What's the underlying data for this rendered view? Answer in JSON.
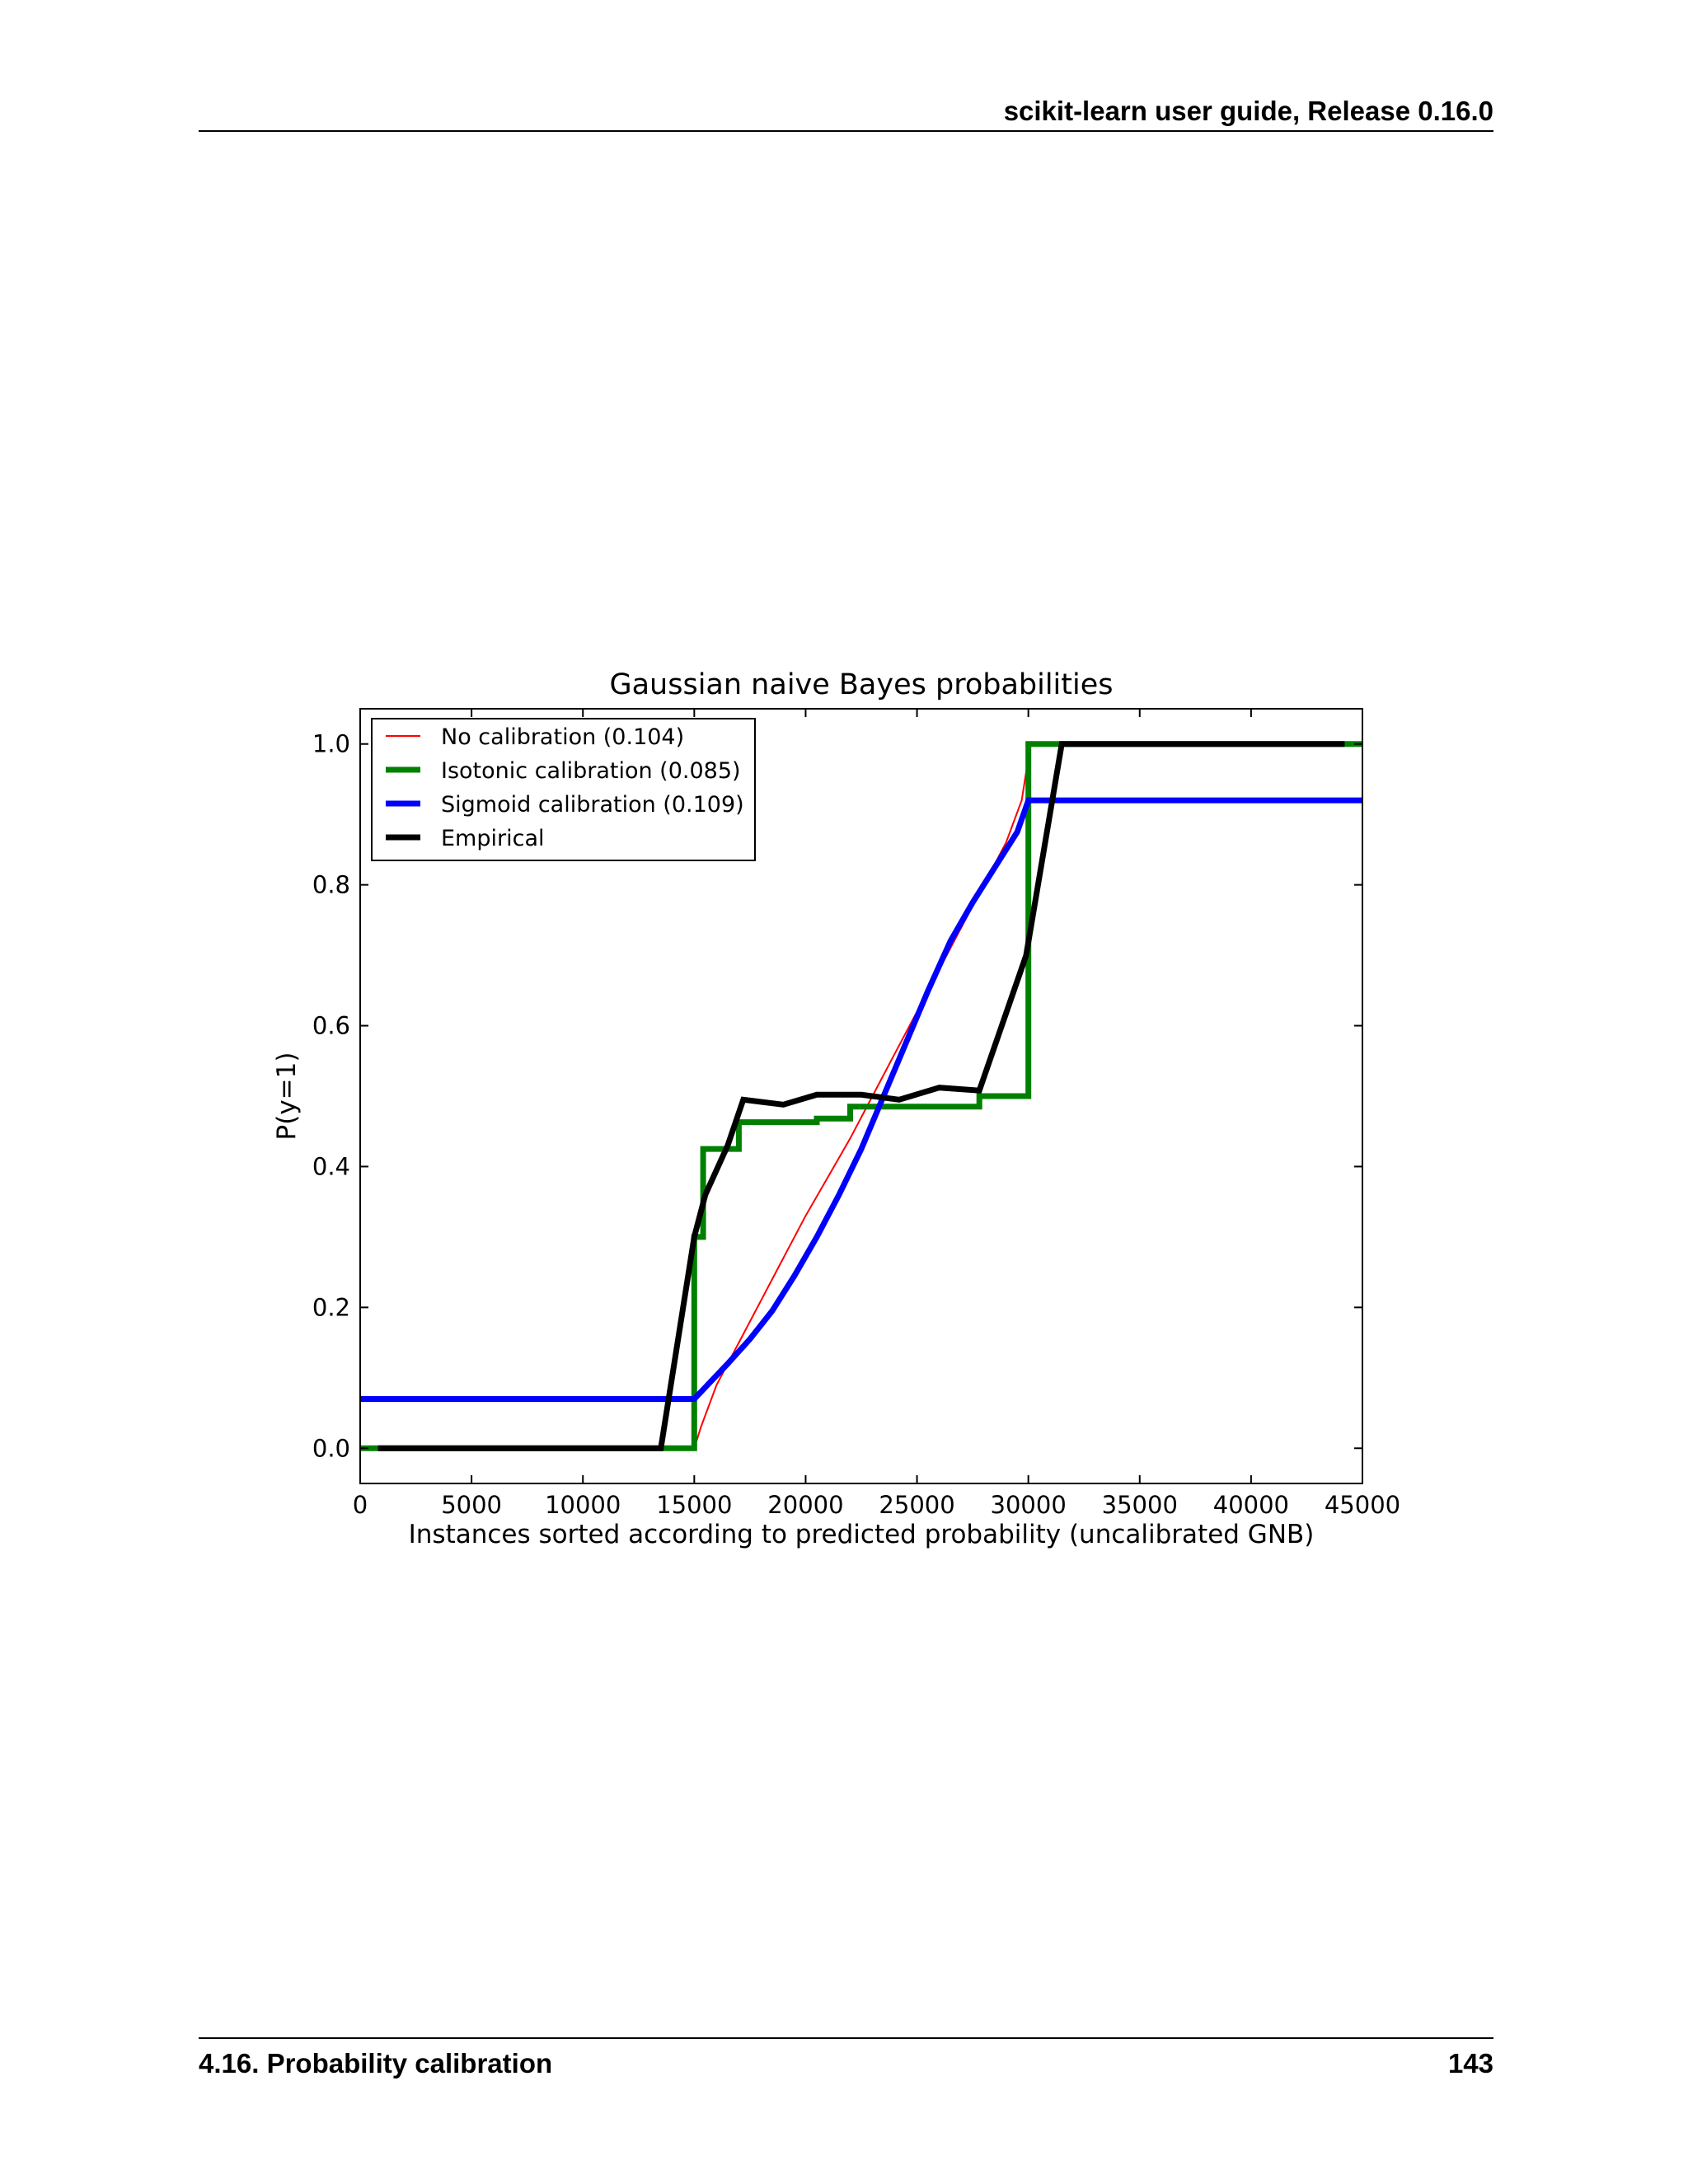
{
  "header": {
    "running_title": "scikit-learn user guide, Release 0.16.0"
  },
  "footer": {
    "section": "4.16.  Probability calibration",
    "page_number": "143"
  },
  "chart_data": {
    "type": "line",
    "title": "Gaussian naive Bayes probabilities",
    "xlabel": "Instances sorted according to predicted probability (uncalibrated GNB)",
    "ylabel": "P(y=1)",
    "xlim": [
      0,
      45000
    ],
    "ylim": [
      -0.05,
      1.05
    ],
    "x_ticks": [
      "0",
      "5000",
      "10000",
      "15000",
      "20000",
      "25000",
      "30000",
      "35000",
      "40000",
      "45000"
    ],
    "y_ticks": [
      "0.0",
      "0.2",
      "0.4",
      "0.6",
      "0.8",
      "1.0"
    ],
    "grid": false,
    "legend_position": "top-left",
    "series": [
      {
        "name": "No calibration (0.104)",
        "color": "#ff0000",
        "points": [
          [
            15000,
            0.0
          ],
          [
            15300,
            0.03
          ],
          [
            16000,
            0.09
          ],
          [
            17000,
            0.15
          ],
          [
            18000,
            0.21
          ],
          [
            19000,
            0.27
          ],
          [
            20000,
            0.33
          ],
          [
            21000,
            0.385
          ],
          [
            22000,
            0.44
          ],
          [
            23000,
            0.5
          ],
          [
            24000,
            0.56
          ],
          [
            25000,
            0.62
          ],
          [
            26000,
            0.68
          ],
          [
            27000,
            0.74
          ],
          [
            28000,
            0.8
          ],
          [
            29000,
            0.86
          ],
          [
            29700,
            0.92
          ],
          [
            30000,
            0.98
          ],
          [
            30100,
            1.0
          ]
        ]
      },
      {
        "name": "Isotonic calibration (0.085)",
        "color": "#008000",
        "points": [
          [
            0,
            0.0
          ],
          [
            15000,
            0.0
          ],
          [
            15000,
            0.3
          ],
          [
            15400,
            0.3
          ],
          [
            15400,
            0.425
          ],
          [
            17000,
            0.425
          ],
          [
            17000,
            0.463
          ],
          [
            20500,
            0.463
          ],
          [
            20500,
            0.468
          ],
          [
            22000,
            0.468
          ],
          [
            22000,
            0.485
          ],
          [
            27800,
            0.485
          ],
          [
            27800,
            0.5
          ],
          [
            30000,
            0.5
          ],
          [
            30000,
            1.0
          ],
          [
            45000,
            1.0
          ]
        ]
      },
      {
        "name": "Sigmoid calibration (0.109)",
        "color": "#0000ff",
        "points": [
          [
            0,
            0.07
          ],
          [
            15000,
            0.07
          ],
          [
            15600,
            0.09
          ],
          [
            16500,
            0.12
          ],
          [
            17500,
            0.155
          ],
          [
            18500,
            0.195
          ],
          [
            19500,
            0.245
          ],
          [
            20500,
            0.3
          ],
          [
            21500,
            0.36
          ],
          [
            22500,
            0.425
          ],
          [
            23500,
            0.5
          ],
          [
            24500,
            0.575
          ],
          [
            25500,
            0.65
          ],
          [
            26500,
            0.72
          ],
          [
            27500,
            0.775
          ],
          [
            28500,
            0.825
          ],
          [
            29500,
            0.875
          ],
          [
            30000,
            0.92
          ],
          [
            45000,
            0.92
          ]
        ]
      },
      {
        "name": "Empirical",
        "color": "#000000",
        "points": [
          [
            800,
            0.0
          ],
          [
            13500,
            0.0
          ],
          [
            15000,
            0.3
          ],
          [
            15500,
            0.36
          ],
          [
            16500,
            0.43
          ],
          [
            17200,
            0.495
          ],
          [
            19000,
            0.488
          ],
          [
            20500,
            0.502
          ],
          [
            22500,
            0.502
          ],
          [
            24200,
            0.495
          ],
          [
            26000,
            0.512
          ],
          [
            27800,
            0.508
          ],
          [
            29900,
            0.7
          ],
          [
            31500,
            1.0
          ],
          [
            44200,
            1.0
          ]
        ]
      }
    ]
  }
}
